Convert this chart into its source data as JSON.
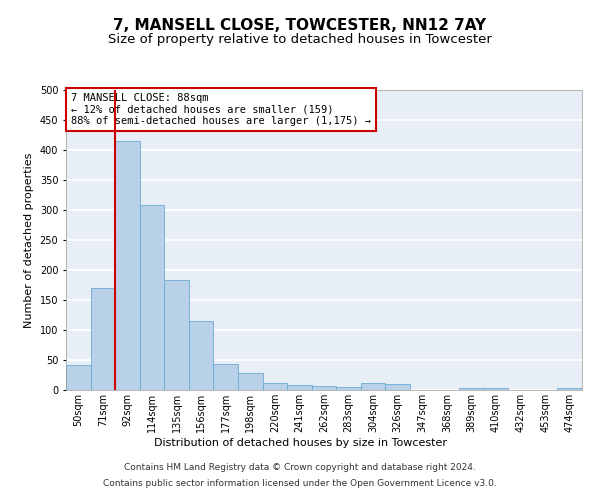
{
  "title": "7, MANSELL CLOSE, TOWCESTER, NN12 7AY",
  "subtitle": "Size of property relative to detached houses in Towcester",
  "xlabel": "Distribution of detached houses by size in Towcester",
  "ylabel": "Number of detached properties",
  "categories": [
    "50sqm",
    "71sqm",
    "92sqm",
    "114sqm",
    "135sqm",
    "156sqm",
    "177sqm",
    "198sqm",
    "220sqm",
    "241sqm",
    "262sqm",
    "283sqm",
    "304sqm",
    "326sqm",
    "347sqm",
    "368sqm",
    "389sqm",
    "410sqm",
    "432sqm",
    "453sqm",
    "474sqm"
  ],
  "values": [
    42,
    170,
    415,
    308,
    183,
    115,
    44,
    28,
    11,
    9,
    7,
    5,
    11,
    10,
    0,
    0,
    3,
    4,
    0,
    0,
    3
  ],
  "bar_color": "#b8d0e8",
  "bar_edgecolor": "#6aaad4",
  "property_line_color": "#cc0000",
  "annotation_text": "7 MANSELL CLOSE: 88sqm\n← 12% of detached houses are smaller (159)\n88% of semi-detached houses are larger (1,175) →",
  "annotation_box_color": "#ffffff",
  "annotation_box_edgecolor": "#cc0000",
  "ylim": [
    0,
    500
  ],
  "yticks": [
    0,
    50,
    100,
    150,
    200,
    250,
    300,
    350,
    400,
    450,
    500
  ],
  "footer_line1": "Contains HM Land Registry data © Crown copyright and database right 2024.",
  "footer_line2": "Contains public sector information licensed under the Open Government Licence v3.0.",
  "background_color": "#e8eef5",
  "grid_color": "#ffffff",
  "title_fontsize": 11,
  "subtitle_fontsize": 9.5,
  "axis_label_fontsize": 8,
  "tick_fontsize": 7,
  "annotation_fontsize": 7.5,
  "footer_fontsize": 6.5
}
